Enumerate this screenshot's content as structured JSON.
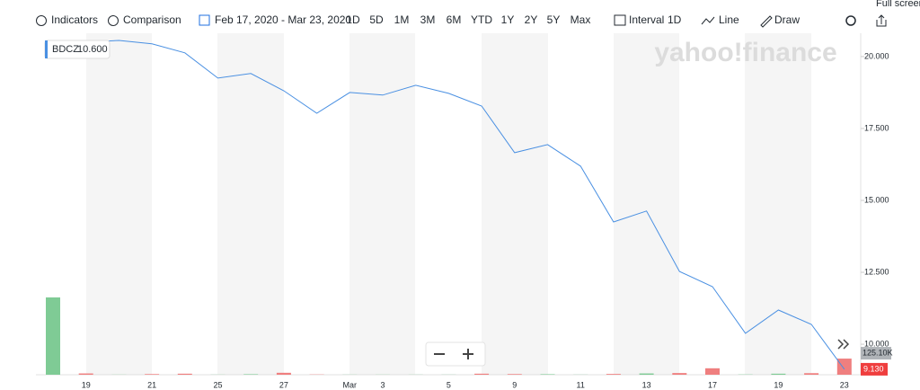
{
  "toolbar": {
    "indicators": "Indicators",
    "comparison": "Comparison",
    "date_range": "Feb 17, 2020 - Mar 23, 2020",
    "ranges": [
      "1D",
      "5D",
      "1M",
      "3M",
      "6M",
      "YTD",
      "1Y",
      "2Y",
      "5Y",
      "Max"
    ],
    "interval": "Interval",
    "interval_value": "1D",
    "chart_style": "Line",
    "draw": "Draw",
    "full_screen": "Full screen"
  },
  "watermark": "yahoo!finance",
  "chart_data": {
    "type": "line",
    "categories": [
      null,
      "19",
      null,
      "21",
      null,
      "25",
      null,
      "27",
      null,
      "Mar",
      "3",
      null,
      "5",
      null,
      "9",
      null,
      "11",
      null,
      "13",
      null,
      "17",
      null,
      "19",
      null,
      "23"
    ],
    "series": [
      {
        "name": "BDCZ",
        "color": "#4a90e2",
        "values": [
          20.47,
          20.5,
          20.56,
          20.44,
          20.13,
          19.25,
          19.41,
          18.81,
          18.03,
          18.75,
          18.66,
          19.0,
          18.72,
          18.28,
          16.66,
          16.94,
          16.19,
          14.25,
          14.63,
          12.53,
          12.0,
          10.38,
          11.19,
          10.69,
          9.13
        ],
        "value_labels": [
          null,
          null,
          null,
          null,
          null,
          null,
          null,
          null,
          null,
          null,
          null,
          null,
          null,
          null,
          null,
          null,
          null,
          null,
          null,
          null,
          null,
          null,
          null,
          null,
          "9.130"
        ]
      },
      {
        "name": "Volume",
        "axis": "y2",
        "colors": [
          "#7fcb95",
          "#ef7f7f",
          "#7fcb95",
          "#ef7f7f",
          "#ef7f7f",
          "#7fcb95",
          "#7fcb95",
          "#ef7f7f",
          "#ef7f7f",
          "#7fcb95",
          "#7fcb95",
          "#7fcb95",
          "#7fcb95",
          "#ef7f7f",
          "#ef7f7f",
          "#7fcb95",
          "#7fcb95",
          "#ef7f7f",
          "#7fcb95",
          "#ef7f7f",
          "#ef7f7f",
          "#7fcb95",
          "#7fcb95",
          "#ef7f7f",
          "#ef7f7f"
        ],
        "values": [
          600,
          10,
          1,
          5,
          8,
          1,
          4,
          15,
          2,
          1,
          1,
          1,
          1,
          8,
          5,
          4,
          1,
          6,
          10,
          13,
          50,
          2,
          8,
          12,
          125.1
        ],
        "value_labels": [
          null,
          null,
          null,
          null,
          null,
          null,
          null,
          null,
          null,
          null,
          null,
          null,
          null,
          null,
          null,
          null,
          null,
          null,
          null,
          null,
          null,
          null,
          null,
          null,
          "125.10K"
        ]
      }
    ],
    "legend_value": "10.600",
    "ylim": [
      8.94,
      20.81
    ],
    "yticks": [
      {
        "value": 10,
        "label": "10.000"
      },
      {
        "value": 12.5,
        "label": "12.500"
      },
      {
        "value": 15,
        "label": "15.000"
      },
      {
        "value": 17.5,
        "label": "17.500"
      },
      {
        "value": 20,
        "label": "20.000"
      }
    ],
    "y2lim": [
      0,
      2650
    ]
  }
}
